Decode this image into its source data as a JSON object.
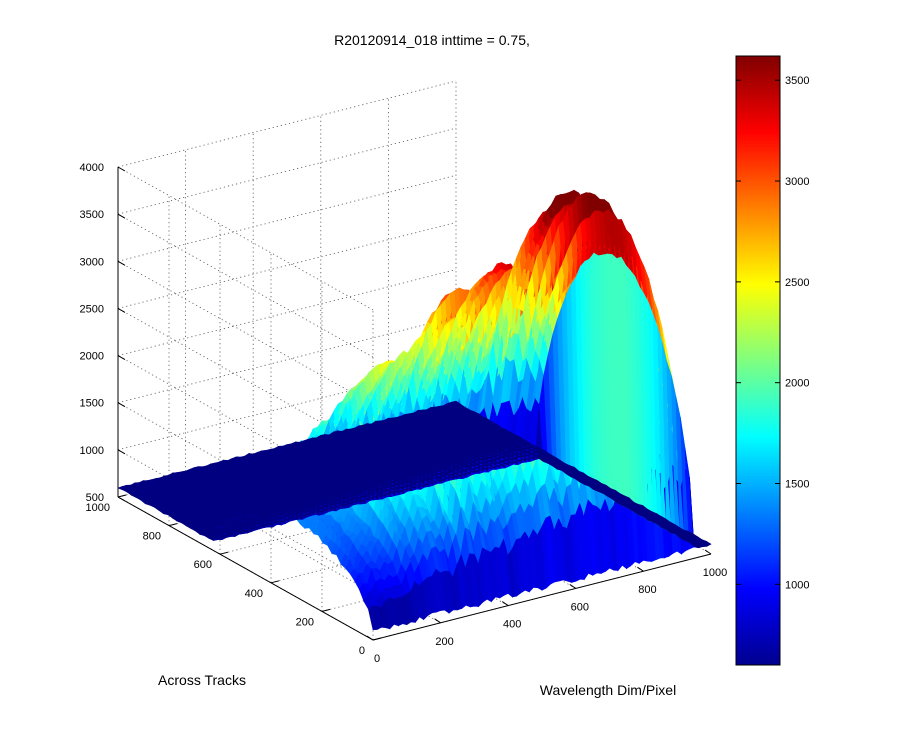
{
  "chart_data": {
    "type": "surface",
    "title": "R20120914_018 inttime = 0.75,",
    "xlabel": "Wavelength Dim/Pixel",
    "ylabel": "Across Tracks",
    "zlabel": "",
    "xlim": [
      0,
      1000
    ],
    "ylim": [
      0,
      1000
    ],
    "zlim": [
      500,
      4000
    ],
    "x_ticks": [
      0,
      200,
      400,
      600,
      800,
      1000
    ],
    "y_ticks": [
      0,
      200,
      400,
      600,
      800,
      1000
    ],
    "z_ticks": [
      500,
      1000,
      1500,
      2000,
      2500,
      3000,
      3500,
      4000
    ],
    "grid": true,
    "colormap": "jet",
    "colorbar": {
      "range": [
        600,
        3620
      ],
      "ticks": [
        1000,
        1500,
        2000,
        2500,
        3000,
        3500
      ],
      "placement": "right"
    },
    "surface": {
      "baseline": 600,
      "signal_y_range": [
        0,
        620
      ],
      "signal_x_range": [
        0,
        950
      ],
      "spectrum_profile": {
        "x": [
          0,
          60,
          120,
          180,
          240,
          300,
          360,
          420,
          480,
          540,
          600,
          660,
          720,
          780,
          840,
          900,
          950
        ],
        "peak": [
          1250,
          1500,
          1750,
          1950,
          2150,
          2300,
          2450,
          2550,
          2700,
          2850,
          2950,
          3100,
          3250,
          3350,
          3500,
          3450,
          3300
        ]
      }
    }
  }
}
